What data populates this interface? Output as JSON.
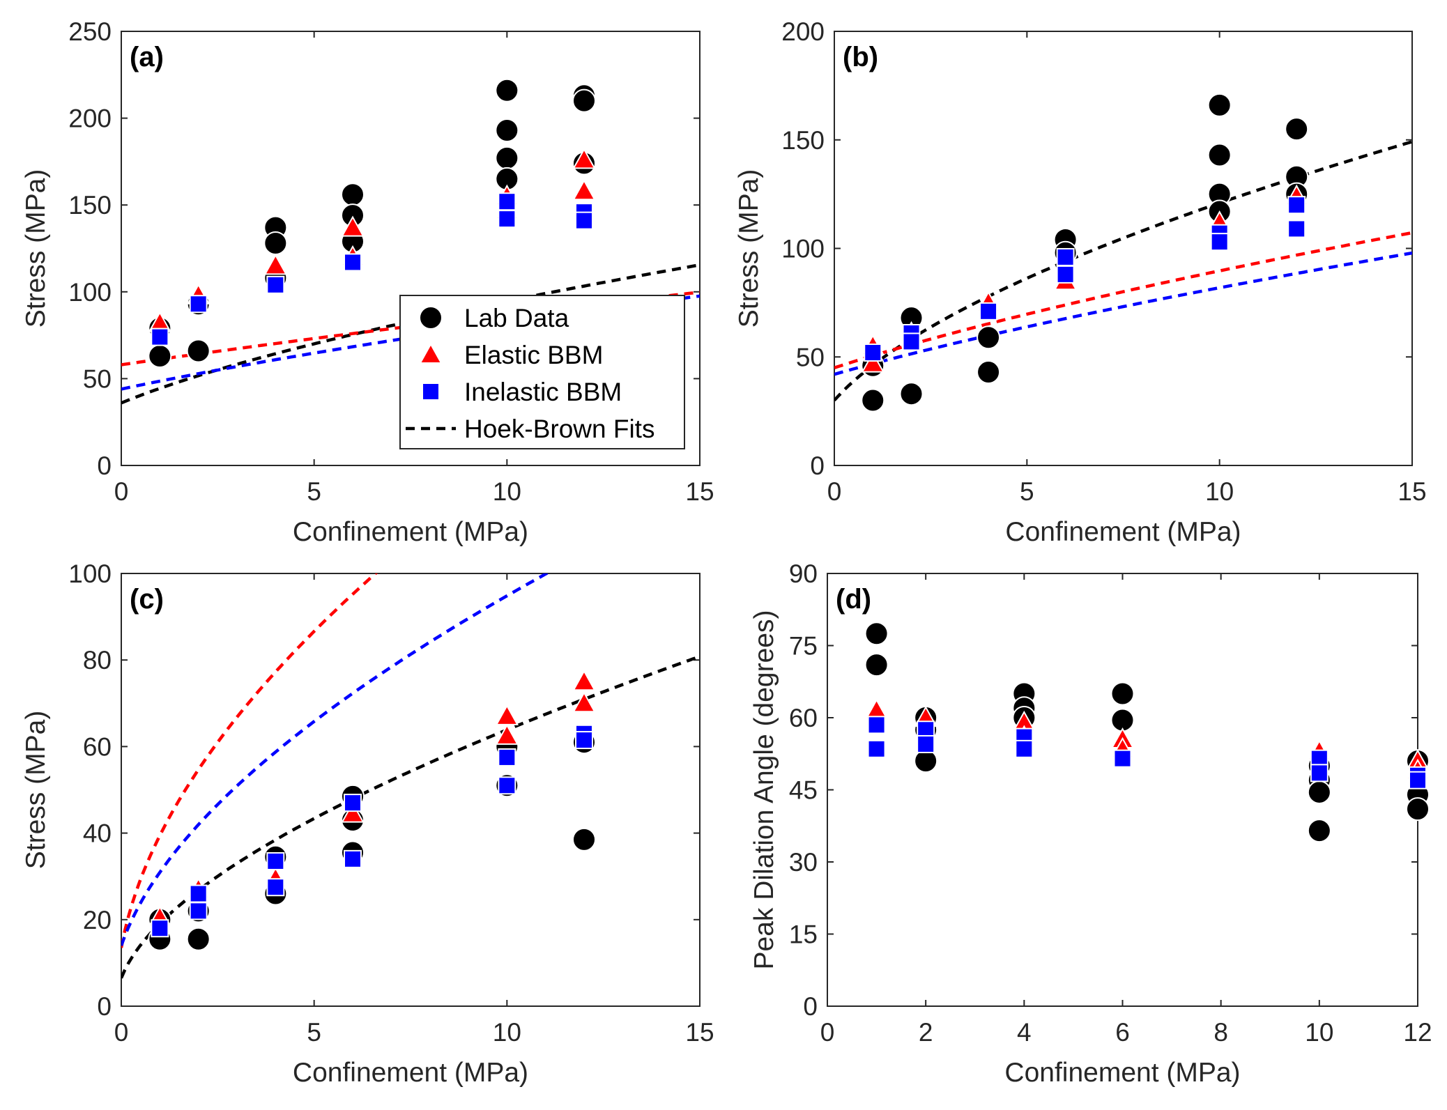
{
  "legend": {
    "entries": [
      "Lab Data",
      "Elastic BBM",
      "Inelastic BBM",
      "Hoek-Brown Fits"
    ],
    "placement": "lower-right of panel (a)"
  },
  "colors": {
    "lab": "#000000",
    "elastic": "#ff0000",
    "inelastic": "#0000ff",
    "hoek": "#000000",
    "marker_edge": "#ffffff"
  },
  "chart_data": [
    {
      "type": "scatter",
      "panel": "(a)",
      "xlabel": "Confinement (MPa)",
      "ylabel": "Stress (MPa)",
      "xlim": [
        0,
        15
      ],
      "ylim": [
        0,
        250
      ],
      "xticks": [
        0,
        5,
        10,
        15
      ],
      "yticks": [
        0,
        50,
        100,
        150,
        200,
        250
      ],
      "grid": false,
      "has_legend": true,
      "series": [
        {
          "name": "Lab Data",
          "marker": "circle",
          "x": [
            1,
            1,
            2,
            2,
            4,
            4,
            4,
            6,
            6,
            6,
            10,
            10,
            10,
            10,
            12,
            12,
            12
          ],
          "y": [
            79,
            63,
            66,
            93,
            137,
            128,
            108,
            156,
            144,
            129,
            216,
            193,
            177,
            165,
            213,
            210,
            174
          ]
        },
        {
          "name": "Elastic BBM",
          "marker": "triangle",
          "x": [
            1,
            2,
            4,
            6,
            6,
            10,
            10,
            12,
            12
          ],
          "y": [
            82,
            98,
            115,
            137,
            120,
            155,
            147,
            176,
            158
          ]
        },
        {
          "name": "Inelastic BBM",
          "marker": "square",
          "x": [
            1,
            2,
            4,
            6,
            10,
            10,
            12,
            12
          ],
          "y": [
            74,
            93,
            104,
            117,
            152,
            142,
            146,
            141
          ]
        }
      ],
      "fits": [
        {
          "name": "Hoek-Brown Fits",
          "color": "black",
          "sc": 36,
          "m": 16.3,
          "s": 1
        },
        {
          "name": "Elastic BBM fit",
          "color": "red",
          "sc": 58,
          "m": 4.4,
          "s": 1
        },
        {
          "name": "Inelastic BBM fit",
          "color": "blue",
          "sc": 44,
          "m": 7.4,
          "s": 1
        }
      ]
    },
    {
      "type": "scatter",
      "panel": "(b)",
      "xlabel": "Confinement (MPa)",
      "ylabel": "Stress (MPa)",
      "xlim": [
        0,
        15
      ],
      "ylim": [
        0,
        200
      ],
      "xticks": [
        0,
        5,
        10,
        15
      ],
      "yticks": [
        0,
        50,
        100,
        150,
        200
      ],
      "grid": false,
      "has_legend": false,
      "series": [
        {
          "name": "Lab Data",
          "marker": "circle",
          "x": [
            1,
            1,
            2,
            2,
            4,
            4,
            6,
            6,
            10,
            10,
            10,
            10,
            12,
            12,
            12
          ],
          "y": [
            46,
            30,
            68,
            33,
            59,
            43,
            104,
            98,
            166,
            143,
            125,
            117,
            155,
            133,
            125
          ]
        },
        {
          "name": "Elastic BBM",
          "marker": "triangle",
          "x": [
            1,
            1,
            2,
            4,
            6,
            10,
            12
          ],
          "y": [
            55,
            47,
            61,
            75,
            85,
            112,
            124
          ]
        },
        {
          "name": "Inelastic BBM",
          "marker": "square",
          "x": [
            1,
            2,
            2,
            4,
            6,
            6,
            10,
            10,
            12,
            12
          ],
          "y": [
            52,
            61,
            57,
            71,
            96,
            88,
            107,
            103,
            120,
            109
          ]
        }
      ],
      "fits": [
        {
          "name": "Hoek-Brown Fits",
          "color": "black",
          "sc": 30,
          "m": 38,
          "s": 1
        },
        {
          "name": "Elastic BBM fit",
          "color": "red",
          "sc": 45,
          "m": 9.6,
          "s": 1
        },
        {
          "name": "Inelastic BBM fit",
          "color": "blue",
          "sc": 42,
          "m": 8.1,
          "s": 1
        }
      ]
    },
    {
      "type": "scatter",
      "panel": "(c)",
      "xlabel": "Confinement (MPa)",
      "ylabel": "Stress (MPa)",
      "xlim": [
        0,
        15
      ],
      "ylim": [
        0,
        100
      ],
      "xticks": [
        0,
        5,
        10,
        15
      ],
      "yticks": [
        0,
        20,
        40,
        60,
        80,
        100
      ],
      "grid": false,
      "has_legend": false,
      "series": [
        {
          "name": "Lab Data",
          "marker": "circle",
          "x": [
            1,
            1,
            2,
            2,
            4,
            4,
            6,
            6,
            6,
            10,
            10,
            12,
            12
          ],
          "y": [
            20,
            15.5,
            22,
            15.5,
            34.5,
            26,
            48.5,
            43,
            35.5,
            60,
            51,
            61,
            38.5
          ]
        },
        {
          "name": "Elastic BBM",
          "marker": "triangle",
          "x": [
            1,
            2,
            4,
            6,
            10,
            10,
            12,
            12
          ],
          "y": [
            20.5,
            27,
            29.5,
            44.5,
            67,
            62.5,
            75,
            70
          ]
        },
        {
          "name": "Inelastic BBM",
          "marker": "square",
          "x": [
            1,
            2,
            2,
            4,
            4,
            6,
            6,
            10,
            10,
            12,
            12
          ],
          "y": [
            18,
            26,
            22,
            33.5,
            27.5,
            47,
            34,
            57.5,
            51,
            63,
            61.5
          ]
        }
      ],
      "fits": [
        {
          "name": "Hoek-Brown Fits",
          "color": "black",
          "sc": 6.5,
          "m": 44,
          "s": 1
        },
        {
          "name": "Elastic BBM fit",
          "color": "red",
          "sc": 13.5,
          "m": 96,
          "s": 1
        },
        {
          "name": "Inelastic BBM fit",
          "color": "blue",
          "sc": 14,
          "m": 50,
          "s": 1
        }
      ]
    },
    {
      "type": "scatter",
      "panel": "(d)",
      "xlabel": "Confinement (MPa)",
      "ylabel": "Peak Dilation Angle (degrees)",
      "xlim": [
        0,
        12
      ],
      "ylim": [
        0,
        90
      ],
      "xticks": [
        0,
        2,
        4,
        6,
        8,
        10,
        12
      ],
      "yticks": [
        0,
        15,
        30,
        45,
        60,
        75,
        90
      ],
      "grid": false,
      "has_legend": false,
      "series": [
        {
          "name": "Lab Data",
          "marker": "circle",
          "x": [
            1,
            1,
            2,
            2,
            2,
            4,
            4,
            4,
            6,
            6,
            10,
            10,
            10,
            10,
            12,
            12,
            12
          ],
          "y": [
            77.5,
            71,
            60,
            57.5,
            51,
            65,
            62,
            60,
            65,
            59.5,
            50,
            47,
            44.5,
            36.5,
            51,
            44,
            41
          ]
        },
        {
          "name": "Elastic BBM",
          "marker": "triangle",
          "x": [
            1,
            2,
            4,
            4,
            6,
            6,
            10,
            10,
            12,
            12
          ],
          "y": [
            61.5,
            60,
            59,
            56,
            55.5,
            53.5,
            53,
            50,
            51,
            49
          ]
        },
        {
          "name": "Inelastic BBM",
          "marker": "square",
          "x": [
            1,
            1,
            2,
            2,
            4,
            4,
            6,
            10,
            10,
            12,
            12
          ],
          "y": [
            58.5,
            53.5,
            57.5,
            54.5,
            56,
            53.5,
            51.5,
            51.5,
            48.5,
            48,
            47
          ]
        }
      ],
      "fits": []
    }
  ]
}
